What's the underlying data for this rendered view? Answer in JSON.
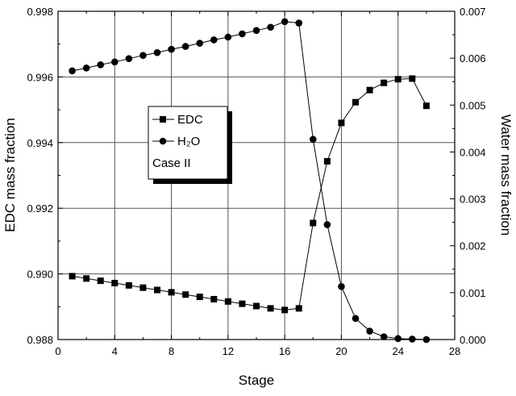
{
  "chart_data": {
    "type": "line",
    "xlabel": "Stage",
    "ylabel_left": "EDC mass fraction",
    "ylabel_right": "Water mass fraction",
    "xlim": [
      0,
      28
    ],
    "ylim_left": [
      0.988,
      0.998
    ],
    "ylim_right": [
      0.0,
      0.007
    ],
    "x_ticks": [
      "0",
      "4",
      "8",
      "12",
      "16",
      "20",
      "24",
      "28"
    ],
    "y_left_ticks": [
      "0.988",
      "0.990",
      "0.992",
      "0.994",
      "0.996",
      "0.998"
    ],
    "y_right_ticks": [
      "0.000",
      "0.001",
      "0.002",
      "0.003",
      "0.004",
      "0.005",
      "0.006",
      "0.007"
    ],
    "grid": true,
    "legend_position": "center-left",
    "annotation": "Case II",
    "series": [
      {
        "name": "EDC",
        "axis": "left",
        "marker": "square",
        "x": [
          1,
          2,
          3,
          4,
          5,
          6,
          7,
          8,
          9,
          10,
          11,
          12,
          13,
          14,
          15,
          16,
          17,
          18,
          19,
          20,
          21,
          22,
          23,
          24,
          25,
          26
        ],
        "values": [
          0.98993,
          0.98986,
          0.98979,
          0.98972,
          0.98965,
          0.98958,
          0.98951,
          0.98944,
          0.98937,
          0.9893,
          0.98923,
          0.98916,
          0.98909,
          0.98902,
          0.98895,
          0.9889,
          0.98895,
          0.99155,
          0.99343,
          0.9946,
          0.99523,
          0.9956,
          0.99582,
          0.99593,
          0.99595,
          0.99512
        ]
      },
      {
        "name": "H₂O",
        "axis": "right",
        "marker": "circle",
        "x": [
          1,
          2,
          3,
          4,
          5,
          6,
          7,
          8,
          9,
          10,
          11,
          12,
          13,
          14,
          15,
          16,
          17,
          18,
          19,
          20,
          21,
          22,
          23,
          24,
          25,
          26
        ],
        "values": [
          0.00573,
          0.00579,
          0.00586,
          0.00592,
          0.00599,
          0.00606,
          0.00612,
          0.00619,
          0.00625,
          0.00632,
          0.00639,
          0.00645,
          0.00652,
          0.00659,
          0.00666,
          0.00678,
          0.00675,
          0.00427,
          0.00245,
          0.00113,
          0.00045,
          0.00018,
          6e-05,
          2e-05,
          1e-05,
          0.0
        ]
      }
    ]
  }
}
